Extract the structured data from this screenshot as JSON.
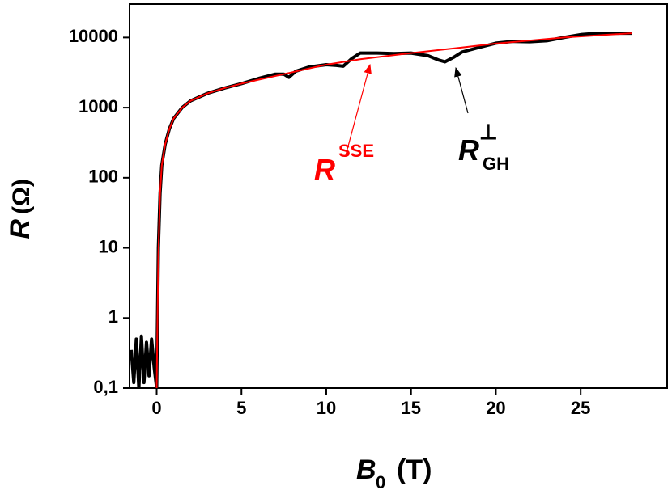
{
  "chart_data": {
    "type": "line",
    "x_label": {
      "symbol": "B",
      "subscript": "0",
      "unit": "(T)"
    },
    "y_label": {
      "symbol": "R",
      "unit": "(Ω)"
    },
    "yscale": "log",
    "xlim": [
      -1.6,
      30.1
    ],
    "ylim": [
      0.1,
      30000
    ],
    "xticks": [
      0,
      5,
      10,
      15,
      20,
      25
    ],
    "yticks": [
      {
        "value": 0.1,
        "label": "0,1"
      },
      1,
      10,
      100,
      1000,
      10000
    ],
    "series": [
      {
        "color": "#000000",
        "x": [
          -1.5,
          -1.35,
          -1.2,
          -1.05,
          -0.9,
          -0.75,
          -0.6,
          -0.45,
          -0.3,
          -0.15,
          0,
          0.05,
          0.1,
          0.2,
          0.3,
          0.5,
          0.75,
          1,
          1.5,
          2,
          3,
          4,
          5,
          6,
          7,
          7.5,
          7.8,
          8.2,
          9,
          10,
          10.6,
          11,
          11.5,
          12,
          13,
          14,
          15,
          16,
          16.6,
          17,
          17.5,
          18,
          19,
          20,
          21,
          22,
          23,
          24,
          25,
          26,
          27,
          28
        ],
        "values": [
          0.35,
          0.12,
          0.5,
          0.1,
          0.55,
          0.12,
          0.45,
          0.15,
          0.5,
          0.2,
          0.1,
          1,
          10,
          60,
          150,
          300,
          500,
          700,
          1000,
          1250,
          1600,
          1900,
          2200,
          2600,
          3000,
          3000,
          2700,
          3300,
          3800,
          4100,
          4000,
          3900,
          5000,
          6000,
          6000,
          5900,
          6000,
          5500,
          4800,
          4500,
          5200,
          6200,
          7200,
          8300,
          8800,
          8700,
          9000,
          10000,
          11000,
          11500,
          11500,
          11500
        ]
      },
      {
        "color": "#ff0000",
        "x": [
          0,
          0.05,
          0.1,
          0.2,
          0.3,
          0.5,
          0.75,
          1,
          1.5,
          2,
          3,
          4,
          5,
          6,
          8,
          10,
          12,
          15,
          18,
          20,
          24,
          28
        ],
        "values": [
          0.1,
          1,
          8,
          60,
          150,
          300,
          500,
          700,
          1000,
          1250,
          1600,
          1900,
          2200,
          2500,
          3200,
          4100,
          4900,
          6000,
          7200,
          8200,
          10000,
          11500
        ]
      }
    ],
    "annotations": [
      {
        "text": "R",
        "sup": "SSE",
        "color": "#ff0000"
      },
      {
        "text": "R",
        "sup": "⊥",
        "sub": "GH",
        "color": "#000000"
      }
    ]
  }
}
